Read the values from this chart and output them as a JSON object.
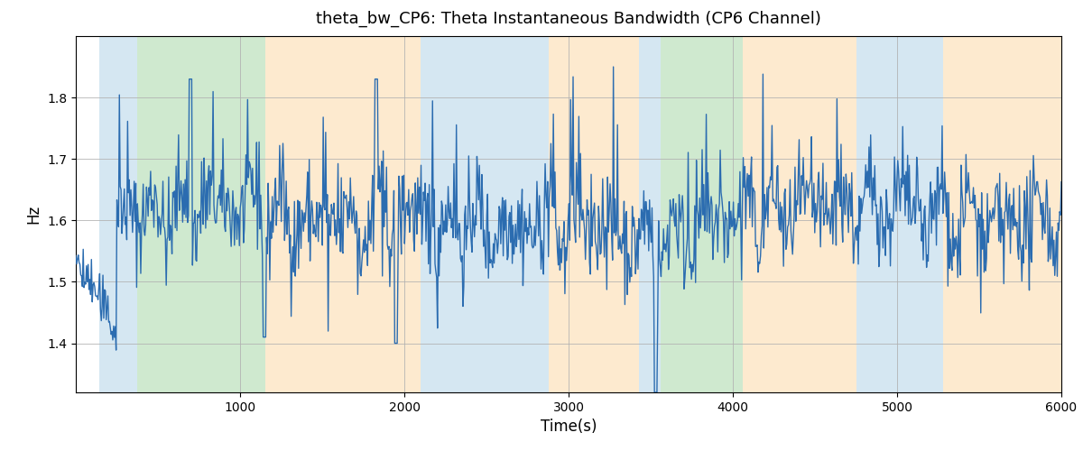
{
  "title": "theta_bw_CP6: Theta Instantaneous Bandwidth (CP6 Channel)",
  "xlabel": "Time(s)",
  "ylabel": "Hz",
  "xlim": [
    0,
    6000
  ],
  "ylim": [
    1.32,
    1.9
  ],
  "figsize": [
    12.0,
    5.0
  ],
  "dpi": 100,
  "line_color": "#2B6CB0",
  "line_width": 1.0,
  "bg_color": "#ffffff",
  "colored_bands": [
    {
      "xmin": 145,
      "xmax": 375,
      "color": "#b3d4e8",
      "alpha": 0.55
    },
    {
      "xmin": 375,
      "xmax": 1155,
      "color": "#a8d8a8",
      "alpha": 0.55
    },
    {
      "xmin": 1155,
      "xmax": 2100,
      "color": "#fdd9a8",
      "alpha": 0.55
    },
    {
      "xmin": 2100,
      "xmax": 2880,
      "color": "#b3d4e8",
      "alpha": 0.55
    },
    {
      "xmin": 2880,
      "xmax": 3430,
      "color": "#fdd9a8",
      "alpha": 0.55
    },
    {
      "xmin": 3430,
      "xmax": 3560,
      "color": "#b3d4e8",
      "alpha": 0.55
    },
    {
      "xmin": 3560,
      "xmax": 4060,
      "color": "#a8d8a8",
      "alpha": 0.55
    },
    {
      "xmin": 4060,
      "xmax": 4750,
      "color": "#fdd9a8",
      "alpha": 0.55
    },
    {
      "xmin": 4750,
      "xmax": 5280,
      "color": "#b3d4e8",
      "alpha": 0.55
    },
    {
      "xmin": 5280,
      "xmax": 6000,
      "color": "#fdd9a8",
      "alpha": 0.55
    }
  ],
  "grid_color": "#b0b0b0",
  "grid_alpha": 0.8,
  "seed": 42,
  "n_points": 1200,
  "yticks": [
    1.4,
    1.5,
    1.6,
    1.7,
    1.8
  ],
  "xticks": [
    1000,
    2000,
    3000,
    4000,
    5000,
    6000
  ]
}
